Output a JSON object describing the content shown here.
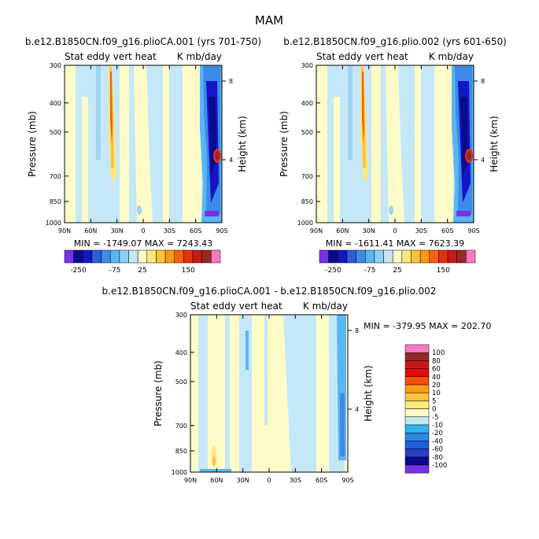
{
  "chart_data": {
    "title": "MAM",
    "panels": [
      {
        "type": "heatmap",
        "case_label": "b.e12.B1850CN.f09_g16.plioCA.001 (yrs 701-750)",
        "variable": "Stat eddy vert heat",
        "units": "K mb/day",
        "ylabel": "Pressure (mb)",
        "ylabel_right": "Height (km)",
        "x_ticks": [
          "90N",
          "60N",
          "30N",
          "0",
          "30S",
          "60S",
          "90S"
        ],
        "y_ticks": [
          "300",
          "400",
          "500",
          "700",
          "850",
          "1000"
        ],
        "height_ticks": [
          "8",
          "4"
        ],
        "stats": "MIN = -1749.07   MAX = 7243.43"
      },
      {
        "type": "heatmap",
        "case_label": "b.e12.B1850CN.f09_g16.plio.002 (yrs 601-650)",
        "variable": "Stat eddy vert heat",
        "units": "K mb/day",
        "ylabel": "Pressure (mb)",
        "ylabel_right": "Height (km)",
        "x_ticks": [
          "90N",
          "60N",
          "30N",
          "0",
          "30S",
          "60S",
          "90S"
        ],
        "y_ticks": [
          "300",
          "400",
          "500",
          "700",
          "850",
          "1000"
        ],
        "height_ticks": [
          "8",
          "4"
        ],
        "stats": "MIN = -1611.41   MAX = 7623.39"
      },
      {
        "type": "heatmap",
        "case_label": "b.e12.B1850CN.f09_g16.plioCA.001 - b.e12.B1850CN.f09_g16.plio.002",
        "variable": "Stat eddy vert heat",
        "units": "K mb/day",
        "ylabel": "Pressure (mb)",
        "ylabel_right": "Height (km)",
        "x_ticks": [
          "90N",
          "60N",
          "30N",
          "0",
          "30S",
          "60S",
          "90S"
        ],
        "y_ticks": [
          "300",
          "400",
          "500",
          "700",
          "850",
          "1000"
        ],
        "height_ticks": [
          "8",
          "4"
        ],
        "stats": "MIN = -379.95   MAX = 202.70"
      }
    ],
    "top_colorbar": {
      "colors": [
        "#7b2fe8",
        "#0a0a8c",
        "#1515c8",
        "#2a5fd6",
        "#3d8ae8",
        "#58b6f2",
        "#8ccff5",
        "#c5e8f8",
        "#fdfbc8",
        "#fde87a",
        "#fdc240",
        "#fd9a10",
        "#f46210",
        "#e63010",
        "#c81818",
        "#962828",
        "#f77ac0"
      ],
      "labels": [
        "-250",
        "-75",
        "25",
        "150"
      ]
    },
    "diff_colorbar": {
      "levels": [
        "100",
        "80",
        "60",
        "40",
        "20",
        "10",
        "5",
        "0",
        "-5",
        "-10",
        "-20",
        "-40",
        "-60",
        "-80",
        "-100"
      ],
      "colors": [
        "#f77ac0",
        "#962828",
        "#c81818",
        "#e60a0a",
        "#f45010",
        "#fd9a10",
        "#fdc240",
        "#fde87a",
        "#fdfbc8",
        "#c5e8f8",
        "#30b4ee",
        "#2a88e8",
        "#1e60d8",
        "#2a3ec8",
        "#0a0a8c",
        "#7b2fe8"
      ]
    }
  }
}
